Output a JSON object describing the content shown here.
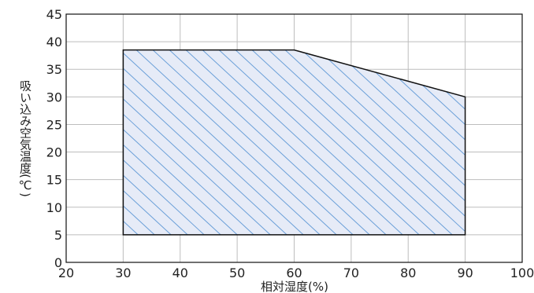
{
  "chart_data": {
    "type": "area",
    "xlabel": "相対湿度(%)",
    "ylabel": "吸い込み空気温度(℃)",
    "xlim": [
      20,
      100
    ],
    "ylim": [
      0,
      45
    ],
    "x_ticks": [
      "20",
      "30",
      "40",
      "50",
      "60",
      "70",
      "80",
      "90",
      "100"
    ],
    "y_ticks": [
      "0",
      "5",
      "10",
      "15",
      "20",
      "25",
      "30",
      "35",
      "40",
      "45"
    ],
    "grid": true,
    "region": {
      "points": [
        {
          "x": 30,
          "y": 5
        },
        {
          "x": 30,
          "y": 38.5
        },
        {
          "x": 60,
          "y": 38.5
        },
        {
          "x": 90,
          "y": 30
        },
        {
          "x": 90,
          "y": 5
        }
      ],
      "fill": "#e6ebf7",
      "hatch_color": "#6a9fd8"
    },
    "colors": {
      "grid": "#bdbdbd",
      "axis": "#111111",
      "outline": "#111111"
    }
  }
}
